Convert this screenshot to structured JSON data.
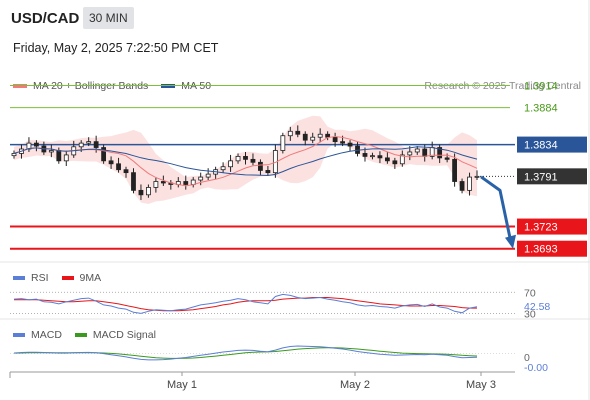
{
  "header": {
    "symbol": "USD/CAD",
    "timeframe": "30 MIN",
    "timestamp": "Friday, May 2, 2025 7:22:50 PM CET"
  },
  "legend": {
    "items": [
      {
        "label": "MA 20 + Bollinger Bands",
        "color": "#f07b7b"
      },
      {
        "label": "MA 50",
        "color": "#2a5599"
      }
    ],
    "credit": "Research © 2025 Trading Central"
  },
  "chart_data": [
    {
      "type": "candlestick",
      "title": "",
      "ylim": [
        1.3675,
        1.3935
      ],
      "x_labels": [
        "May 1",
        "May 2",
        "May 3"
      ],
      "levels": [
        {
          "value": 1.3914,
          "label": "1.3914",
          "kind": "resistance",
          "color": "#7cbf3a"
        },
        {
          "value": 1.3884,
          "label": "1.3884",
          "kind": "resistance",
          "color": "#7cbf3a"
        },
        {
          "value": 1.3834,
          "label": "1.3834",
          "kind": "pivot",
          "color": "#2a5599"
        },
        {
          "value": 1.3723,
          "label": "1.3723",
          "kind": "support",
          "color": "#e8161a"
        },
        {
          "value": 1.3693,
          "label": "1.3693",
          "kind": "support",
          "color": "#e8161a"
        }
      ],
      "last_price": {
        "value": 1.3791,
        "label": "1.3791",
        "color": "#333333"
      },
      "close_path": [
        1.3822,
        1.3828,
        1.3836,
        1.3832,
        1.3824,
        1.3826,
        1.3812,
        1.382,
        1.3831,
        1.3836,
        1.3838,
        1.383,
        1.3812,
        1.3808,
        1.38,
        1.3796,
        1.3772,
        1.3766,
        1.3776,
        1.3784,
        1.3782,
        1.378,
        1.3784,
        1.378,
        1.3786,
        1.379,
        1.3794,
        1.38,
        1.3804,
        1.3812,
        1.3818,
        1.3814,
        1.381,
        1.3799,
        1.3796,
        1.3826,
        1.3846,
        1.3852,
        1.3848,
        1.384,
        1.3844,
        1.3848,
        1.3844,
        1.3838,
        1.3836,
        1.3832,
        1.3822,
        1.3818,
        1.3819,
        1.3816,
        1.3812,
        1.3808,
        1.382,
        1.3824,
        1.3828,
        1.3818,
        1.383,
        1.3816,
        1.3814,
        1.3784,
        1.3772,
        1.379,
        1.3791
      ],
      "forecast_target": 1.3693
    },
    {
      "type": "line",
      "title": "",
      "legend": [
        {
          "label": "RSI",
          "color": "#5b7ed6"
        },
        {
          "label": "9MA",
          "color": "#e8161a"
        }
      ],
      "ylim": [
        25,
        80
      ],
      "levels": [
        70,
        30
      ],
      "level_labels": [
        "70",
        "30"
      ],
      "current_value": "42.58",
      "rsi": [
        57,
        58,
        56,
        57,
        52,
        51,
        48,
        52,
        55,
        58,
        59,
        53,
        46,
        44,
        40,
        38,
        32,
        30,
        34,
        37,
        36,
        35,
        37,
        38,
        42,
        46,
        48,
        50,
        53,
        55,
        58,
        56,
        52,
        50,
        48,
        62,
        66,
        64,
        60,
        58,
        59,
        60,
        57,
        55,
        52,
        50,
        46,
        44,
        45,
        43,
        42,
        40,
        44,
        46,
        47,
        43,
        48,
        42,
        40,
        34,
        31,
        40,
        42.58
      ],
      "ma9": [
        56,
        56,
        56,
        56,
        55,
        54,
        53,
        52,
        52,
        53,
        54,
        54,
        52,
        50,
        48,
        45,
        42,
        39,
        37,
        36,
        35,
        35,
        35,
        36,
        37,
        39,
        41,
        43,
        46,
        48,
        51,
        53,
        54,
        54,
        54,
        55,
        57,
        58,
        59,
        59,
        60,
        60,
        60,
        59,
        58,
        56,
        54,
        52,
        50,
        48,
        47,
        46,
        45,
        44,
        44,
        44,
        45,
        45,
        44,
        43,
        41,
        40,
        40
      ]
    },
    {
      "type": "line",
      "title": "",
      "legend": [
        {
          "label": "MACD",
          "color": "#5b7ed6"
        },
        {
          "label": "MACD Signal",
          "color": "#3a9a1e"
        }
      ],
      "ylim": [
        -0.0012,
        0.001
      ],
      "zero_label": "0",
      "current_value": "-0.00",
      "macd": [
        5e-05,
        8e-05,
        0.0001,
        0.0001,
        8e-05,
        6e-05,
        4e-05,
        4e-05,
        6e-05,
        8e-05,
        9e-05,
        6e-05,
        0.0,
        -8e-05,
        -0.00016,
        -0.00024,
        -0.00034,
        -0.00042,
        -0.00046,
        -0.00046,
        -0.00044,
        -0.0004,
        -0.00034,
        -0.00028,
        -0.0002,
        -0.00012,
        -4e-05,
        4e-05,
        0.00012,
        0.00018,
        0.00024,
        0.00026,
        0.00024,
        0.00018,
        0.00014,
        0.00026,
        0.00042,
        0.00052,
        0.00056,
        0.00054,
        0.00052,
        0.0005,
        0.00046,
        0.0004,
        0.00034,
        0.00026,
        0.00016,
        8e-05,
        2e-05,
        -4e-05,
        -8e-05,
        -0.00012,
        -0.0001,
        -8e-05,
        -6e-05,
        -8e-05,
        -4e-05,
        -8e-05,
        -0.00012,
        -0.00022,
        -0.0003,
        -0.00028,
        -0.00026
      ],
      "signal": [
        4e-05,
        5e-05,
        6e-05,
        7e-05,
        7e-05,
        7e-05,
        6e-05,
        6e-05,
        6e-05,
        6e-05,
        7e-05,
        7e-05,
        5e-05,
        2e-05,
        -2e-05,
        -7e-05,
        -0.00013,
        -0.00019,
        -0.00025,
        -0.0003,
        -0.00033,
        -0.00035,
        -0.00035,
        -0.00034,
        -0.00032,
        -0.00028,
        -0.00023,
        -0.00018,
        -0.00012,
        -6e-05,
        0.0,
        6e-05,
        0.0001,
        0.00012,
        0.00013,
        0.00016,
        0.00021,
        0.00027,
        0.00033,
        0.00037,
        0.0004,
        0.00042,
        0.00043,
        0.00043,
        0.00041,
        0.00038,
        0.00034,
        0.00029,
        0.00024,
        0.00018,
        0.00013,
        8e-05,
        4e-05,
        2e-05,
        0.0,
        -1e-05,
        -2e-05,
        -3e-05,
        -5e-05,
        -8e-05,
        -0.00012,
        -0.00015,
        -0.00017
      ]
    }
  ]
}
